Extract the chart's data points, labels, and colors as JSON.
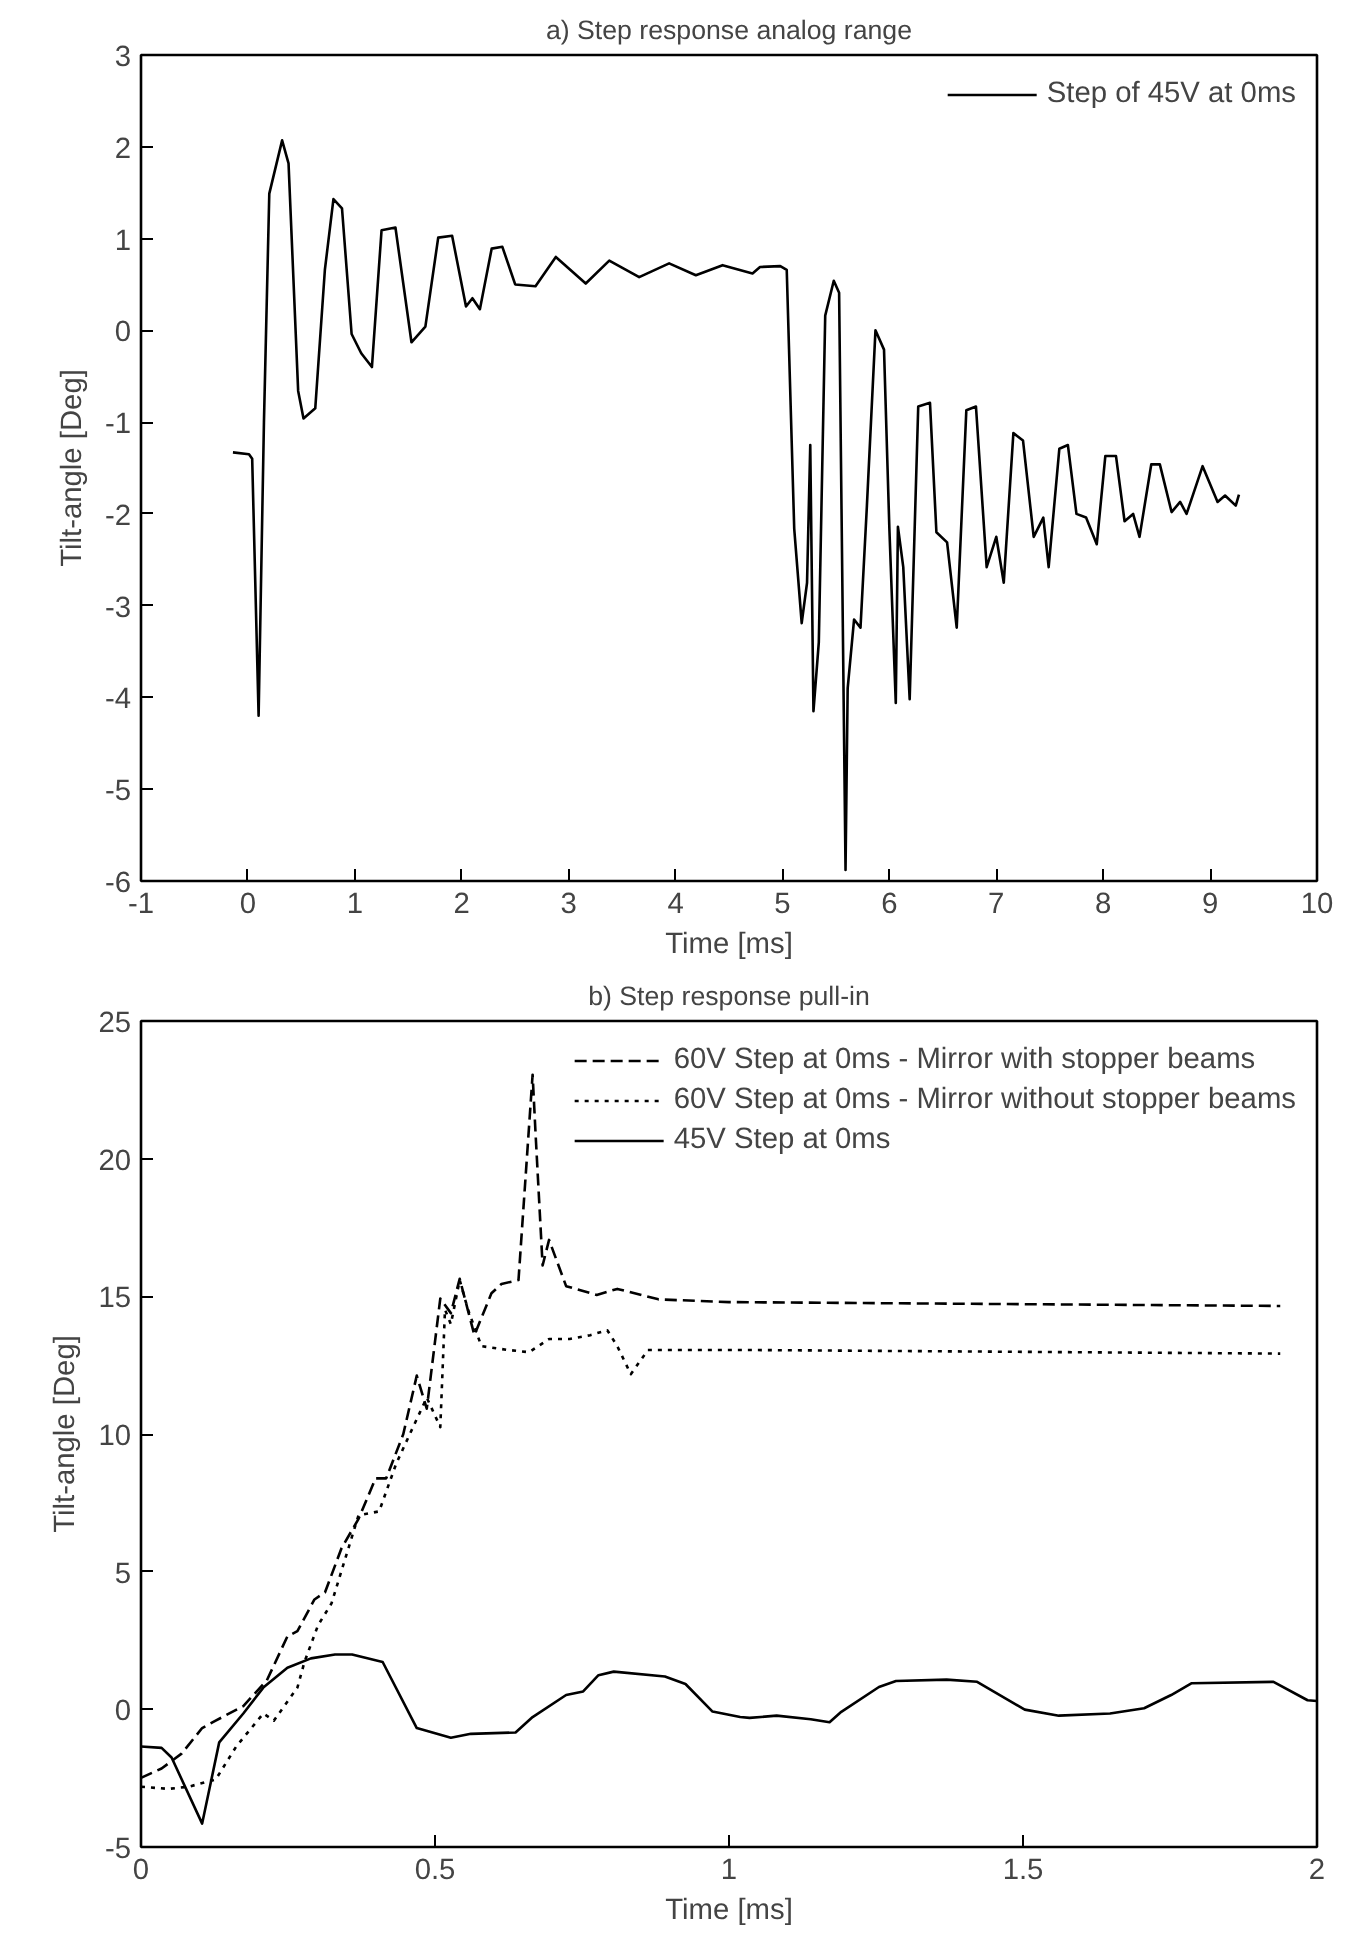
{
  "chart_data": [
    {
      "type": "line",
      "title": "a) Step response analog range",
      "xlabel": "Time [ms]",
      "ylabel": "Tilt-angle [Deg]",
      "xlim": [
        -1,
        10
      ],
      "xticks": [
        -1,
        0,
        1,
        2,
        3,
        4,
        5,
        6,
        7,
        8,
        9,
        10
      ],
      "ylim": [
        -6,
        3
      ],
      "yticks": [
        -6,
        -5,
        -4,
        -3,
        -2,
        -1,
        0,
        1,
        2,
        3
      ],
      "grid": false,
      "legend": "top right",
      "series": [
        {
          "name": "Step of 45V at 0ms",
          "color": "#000000",
          "line_style": "solid",
          "x": [
            -0.14,
            0.01,
            0.04,
            0.1,
            0.15,
            0.2,
            0.32,
            0.38,
            0.47,
            0.52,
            0.63,
            0.72,
            0.8,
            0.88,
            0.97,
            1.06,
            1.16,
            1.25,
            1.38,
            1.53,
            1.66,
            1.78,
            1.91,
            2.04,
            2.1,
            2.17,
            2.28,
            2.38,
            2.5,
            2.69,
            2.88,
            3.16,
            3.38,
            3.66,
            3.94,
            4.19,
            4.44,
            4.72,
            4.79,
            4.98,
            5.04,
            5.11,
            5.18,
            5.23,
            5.26,
            5.29,
            5.34,
            5.4,
            5.48,
            5.53,
            5.59,
            5.61,
            5.67,
            5.73,
            5.79,
            5.87,
            5.95,
            6.0,
            6.06,
            6.08,
            6.13,
            6.19,
            6.27,
            6.38,
            6.44,
            6.54,
            6.63,
            6.72,
            6.81,
            6.91,
            7.0,
            7.07,
            7.16,
            7.25,
            7.35,
            7.44,
            7.49,
            7.59,
            7.67,
            7.75,
            7.84,
            7.94,
            8.02,
            8.12,
            8.2,
            8.28,
            8.34,
            8.45,
            8.53,
            8.64,
            8.72,
            8.78,
            8.93,
            9.07,
            9.14,
            9.24,
            9.27
          ],
          "values": [
            -1.33,
            -1.35,
            -1.4,
            -4.2,
            -1.0,
            1.49,
            2.07,
            1.82,
            -0.66,
            -0.96,
            -0.85,
            0.66,
            1.43,
            1.33,
            -0.04,
            -0.25,
            -0.4,
            1.09,
            1.12,
            -0.13,
            0.04,
            1.01,
            1.03,
            0.26,
            0.35,
            0.23,
            0.89,
            0.91,
            0.5,
            0.48,
            0.8,
            0.51,
            0.76,
            0.58,
            0.73,
            0.6,
            0.71,
            0.62,
            0.69,
            0.7,
            0.66,
            -2.16,
            -3.19,
            -2.75,
            -1.25,
            -4.15,
            -3.4,
            0.16,
            0.54,
            0.41,
            -5.88,
            -3.9,
            -3.15,
            -3.24,
            -1.91,
            0.0,
            -0.21,
            -2.16,
            -4.06,
            -2.14,
            -2.58,
            -4.02,
            -0.83,
            -0.79,
            -2.2,
            -2.31,
            -3.24,
            -0.87,
            -0.83,
            -2.58,
            -2.25,
            -2.75,
            -1.12,
            -1.2,
            -2.25,
            -2.04,
            -2.58,
            -1.29,
            -1.25,
            -2.0,
            -2.04,
            -2.33,
            -1.37,
            -1.37,
            -2.08,
            -2.0,
            -2.25,
            -1.46,
            -1.46,
            -1.98,
            -1.87,
            -2.0,
            -1.48,
            -1.87,
            -1.8,
            -1.91,
            -1.79
          ]
        }
      ]
    },
    {
      "type": "line",
      "title": "b) Step response pull-in",
      "xlabel": "Time [ms]",
      "ylabel": "Tilt-angle [Deg]",
      "xlim": [
        0,
        2
      ],
      "xticks": [
        0,
        0.5,
        1,
        1.5,
        2
      ],
      "ylim": [
        -5,
        25
      ],
      "yticks": [
        -5,
        0,
        5,
        10,
        15,
        20,
        25
      ],
      "grid": false,
      "legend": "top right",
      "series": [
        {
          "name": "60V Step at 0ms - Mirror with stopper beams",
          "color": "#000000",
          "line_style": "dashed",
          "x": [
            0,
            0.035,
            0.069,
            0.104,
            0.127,
            0.174,
            0.214,
            0.249,
            0.266,
            0.295,
            0.313,
            0.341,
            0.37,
            0.399,
            0.417,
            0.446,
            0.469,
            0.486,
            0.509,
            0.527,
            0.542,
            0.567,
            0.596,
            0.613,
            0.642,
            0.666,
            0.671,
            0.683,
            0.694,
            0.723,
            0.775,
            0.81,
            0.88,
            1.0,
            1.9375
          ],
          "values": [
            -2.49,
            -2.15,
            -1.61,
            -0.68,
            -0.41,
            0.12,
            1.05,
            2.65,
            2.84,
            3.99,
            4.25,
            5.85,
            6.92,
            8.39,
            8.39,
            9.99,
            12.12,
            10.92,
            14.92,
            14.39,
            15.64,
            13.59,
            15.11,
            15.45,
            15.59,
            23.05,
            20.92,
            16.12,
            17.05,
            15.37,
            15.05,
            15.27,
            14.89,
            14.79,
            14.65
          ]
        },
        {
          "name": "60V Step at 0ms - Mirror without stopper beams",
          "color": "#000000",
          "line_style": "dotted",
          "x": [
            0,
            0.046,
            0.081,
            0.127,
            0.162,
            0.208,
            0.226,
            0.266,
            0.278,
            0.301,
            0.324,
            0.347,
            0.37,
            0.405,
            0.434,
            0.457,
            0.486,
            0.509,
            0.517,
            0.527,
            0.542,
            0.556,
            0.579,
            0.625,
            0.66,
            0.694,
            0.729,
            0.764,
            0.793,
            0.81,
            0.833,
            0.862,
            0.926,
            1.042,
            1.9375
          ],
          "values": [
            -2.81,
            -2.89,
            -2.81,
            -2.55,
            -1.35,
            -0.15,
            -0.41,
            0.79,
            1.72,
            3.05,
            3.85,
            5.45,
            7.05,
            7.19,
            8.92,
            9.99,
            11.32,
            10.25,
            14.52,
            13.99,
            15.59,
            14.52,
            13.19,
            13.05,
            12.97,
            13.45,
            13.45,
            13.59,
            13.77,
            13.19,
            12.17,
            13.05,
            13.05,
            13.05,
            12.92
          ]
        },
        {
          "name": "45V Step at 0ms",
          "color": "#000000",
          "line_style": "solid",
          "x": [
            0,
            0.035,
            0.052,
            0.104,
            0.133,
            0.174,
            0.208,
            0.249,
            0.289,
            0.33,
            0.359,
            0.411,
            0.469,
            0.527,
            0.561,
            0.637,
            0.666,
            0.723,
            0.752,
            0.778,
            0.804,
            0.891,
            0.926,
            0.972,
            1.019,
            1.035,
            1.081,
            1.139,
            1.171,
            1.191,
            1.255,
            1.284,
            1.37,
            1.422,
            1.503,
            1.561,
            1.648,
            1.706,
            1.752,
            1.787,
            1.926,
            1.984,
            2.0
          ],
          "values": [
            -1.35,
            -1.4,
            -1.75,
            -4.15,
            -1.2,
            -0.15,
            0.79,
            1.51,
            1.85,
            1.99,
            1.99,
            1.72,
            -0.68,
            -1.03,
            -0.89,
            -0.84,
            -0.28,
            0.52,
            0.65,
            1.24,
            1.37,
            1.19,
            0.92,
            -0.08,
            -0.28,
            -0.31,
            -0.23,
            -0.36,
            -0.47,
            -0.09,
            0.81,
            1.03,
            1.08,
            1.0,
            -0.01,
            -0.23,
            -0.15,
            0.04,
            0.52,
            0.95,
            1.0,
            0.33,
            0.3
          ]
        }
      ]
    }
  ]
}
